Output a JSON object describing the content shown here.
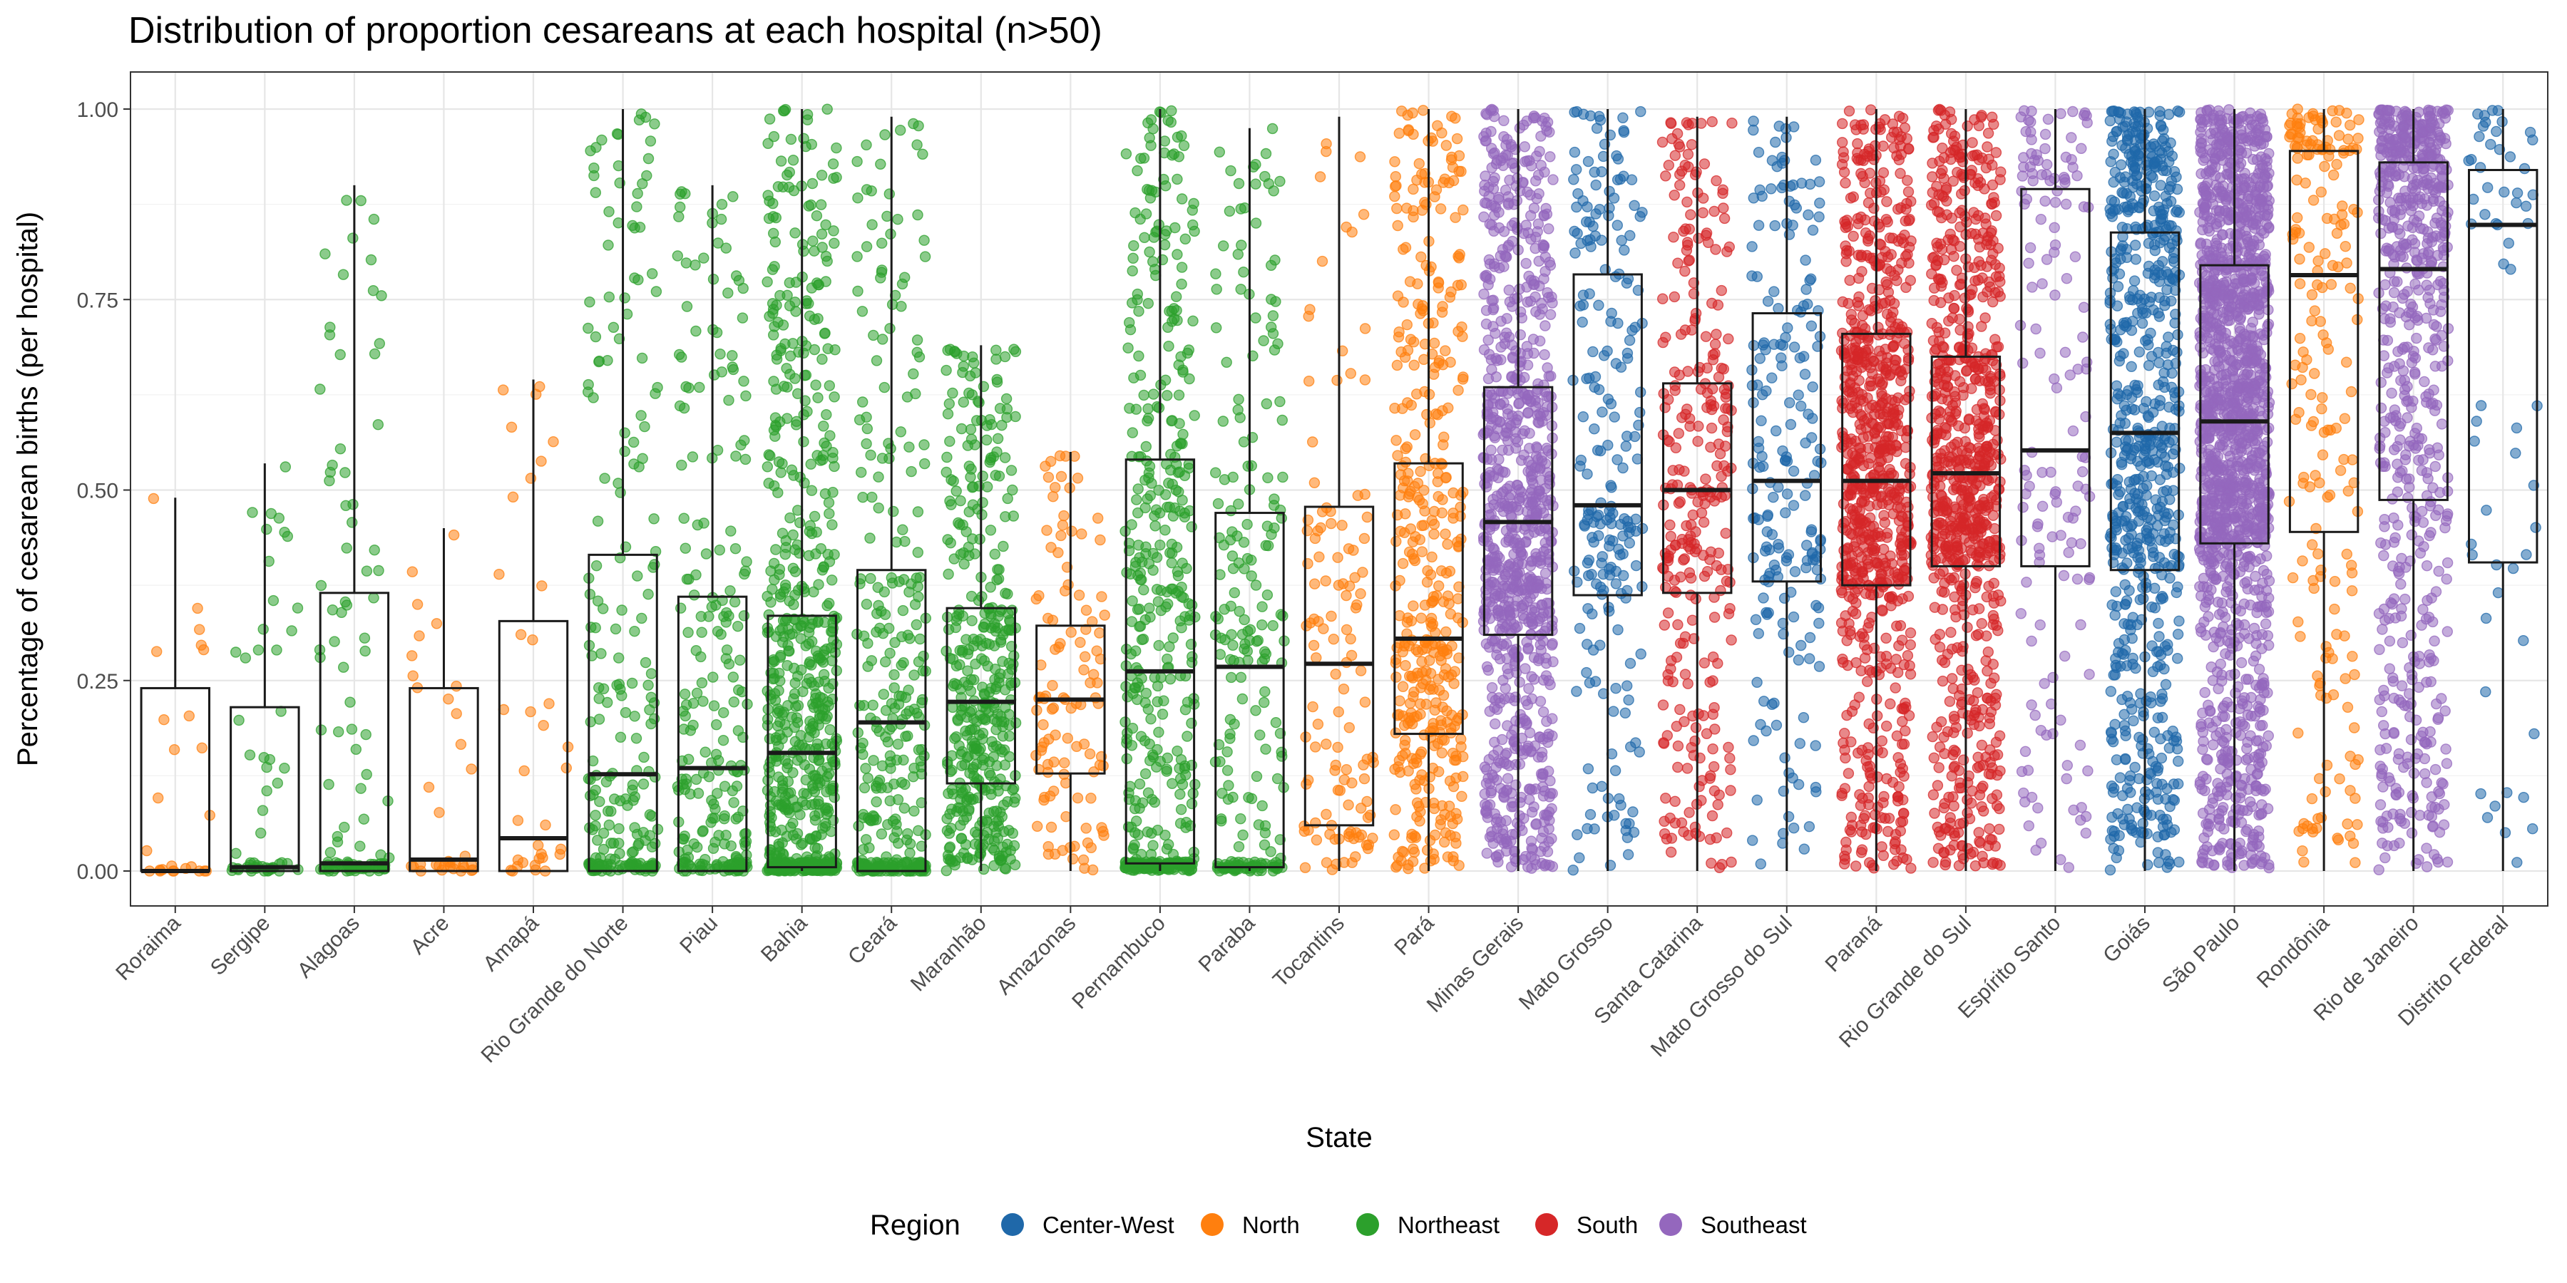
{
  "chart_data": {
    "type": "boxplot+jitter",
    "title": "Distribution of proportion cesareans at each hospital (n>50)",
    "xlabel": "State",
    "ylabel": "Percentage of cesarean births (per hospital)",
    "ylim": [
      0,
      1
    ],
    "yticks": [
      "0.00",
      "0.25",
      "0.50",
      "0.75",
      "1.00"
    ],
    "grid": true,
    "legend": {
      "title": "Region",
      "position": "bottom",
      "entries": [
        {
          "name": "Center-West",
          "color": "#1f68a9"
        },
        {
          "name": "North",
          "color": "#ff7f0e"
        },
        {
          "name": "Northeast",
          "color": "#2ca02c"
        },
        {
          "name": "South",
          "color": "#d62728"
        },
        {
          "name": "Southeast",
          "color": "#9467bd"
        }
      ]
    },
    "states": [
      {
        "name": "Roraima",
        "region": "North",
        "n": 25,
        "q1": 0.0,
        "median": 0.0,
        "q3": 0.24,
        "lo": 0.0,
        "hi": 0.49
      },
      {
        "name": "Sergipe",
        "region": "Northeast",
        "n": 55,
        "q1": 0.0,
        "median": 0.005,
        "q3": 0.215,
        "lo": 0.0,
        "hi": 0.535
      },
      {
        "name": "Alagoas",
        "region": "Northeast",
        "n": 110,
        "q1": 0.0,
        "median": 0.01,
        "q3": 0.365,
        "lo": 0.0,
        "hi": 0.9
      },
      {
        "name": "Acre",
        "region": "North",
        "n": 35,
        "q1": 0.0,
        "median": 0.015,
        "q3": 0.24,
        "lo": 0.0,
        "hi": 0.45
      },
      {
        "name": "Amapá",
        "region": "North",
        "n": 35,
        "q1": 0.0,
        "median": 0.043,
        "q3": 0.328,
        "lo": 0.0,
        "hi": 0.645
      },
      {
        "name": "Rio Grande do Norte",
        "region": "Northeast",
        "n": 220,
        "q1": 0.0,
        "median": 0.127,
        "q3": 0.415,
        "lo": 0.0,
        "hi": 1.0
      },
      {
        "name": "Piau",
        "region": "Northeast",
        "n": 230,
        "q1": 0.0,
        "median": 0.135,
        "q3": 0.36,
        "lo": 0.0,
        "hi": 0.9
      },
      {
        "name": "Bahia",
        "region": "Northeast",
        "n": 700,
        "q1": 0.005,
        "median": 0.155,
        "q3": 0.335,
        "lo": 0.0,
        "hi": 1.0
      },
      {
        "name": "Ceará",
        "region": "Northeast",
        "n": 320,
        "q1": 0.0,
        "median": 0.195,
        "q3": 0.395,
        "lo": 0.0,
        "hi": 0.99
      },
      {
        "name": "Maranhão",
        "region": "Northeast",
        "n": 420,
        "q1": 0.115,
        "median": 0.222,
        "q3": 0.345,
        "lo": 0.0,
        "hi": 0.69
      },
      {
        "name": "Amazonas",
        "region": "North",
        "n": 110,
        "q1": 0.128,
        "median": 0.225,
        "q3": 0.322,
        "lo": 0.0,
        "hi": 0.55
      },
      {
        "name": "Pernambuco",
        "region": "Northeast",
        "n": 450,
        "q1": 0.01,
        "median": 0.262,
        "q3": 0.54,
        "lo": 0.0,
        "hi": 1.0
      },
      {
        "name": "Paraba",
        "region": "Northeast",
        "n": 220,
        "q1": 0.005,
        "median": 0.268,
        "q3": 0.47,
        "lo": 0.0,
        "hi": 0.975
      },
      {
        "name": "Tocantins",
        "region": "North",
        "n": 120,
        "q1": 0.06,
        "median": 0.272,
        "q3": 0.478,
        "lo": 0.0,
        "hi": 0.99
      },
      {
        "name": "Pará",
        "region": "North",
        "n": 420,
        "q1": 0.18,
        "median": 0.305,
        "q3": 0.535,
        "lo": 0.0,
        "hi": 1.0
      },
      {
        "name": "Minas Gerais",
        "region": "Southeast",
        "n": 900,
        "q1": 0.31,
        "median": 0.458,
        "q3": 0.635,
        "lo": 0.0,
        "hi": 1.0
      },
      {
        "name": "Mato Grosso",
        "region": "Center-West",
        "n": 220,
        "q1": 0.362,
        "median": 0.48,
        "q3": 0.783,
        "lo": 0.0,
        "hi": 1.0
      },
      {
        "name": "Santa Catarina",
        "region": "South",
        "n": 300,
        "q1": 0.365,
        "median": 0.5,
        "q3": 0.64,
        "lo": 0.0,
        "hi": 0.99
      },
      {
        "name": "Mato Grosso do Sul",
        "region": "Center-West",
        "n": 200,
        "q1": 0.38,
        "median": 0.512,
        "q3": 0.732,
        "lo": 0.0,
        "hi": 0.99
      },
      {
        "name": "Paraná",
        "region": "South",
        "n": 800,
        "q1": 0.375,
        "median": 0.512,
        "q3": 0.705,
        "lo": 0.0,
        "hi": 1.0
      },
      {
        "name": "Rio Grande do Sul",
        "region": "South",
        "n": 800,
        "q1": 0.4,
        "median": 0.522,
        "q3": 0.675,
        "lo": 0.0,
        "hi": 1.0
      },
      {
        "name": "Espírito Santo",
        "region": "Southeast",
        "n": 150,
        "q1": 0.4,
        "median": 0.552,
        "q3": 0.895,
        "lo": 0.0,
        "hi": 1.0
      },
      {
        "name": "Goiás",
        "region": "Center-West",
        "n": 700,
        "q1": 0.395,
        "median": 0.575,
        "q3": 0.838,
        "lo": 0.0,
        "hi": 1.0
      },
      {
        "name": "São Paulo",
        "region": "Southeast",
        "n": 1500,
        "q1": 0.43,
        "median": 0.59,
        "q3": 0.795,
        "lo": 0.0,
        "hi": 1.0
      },
      {
        "name": "Rondônia",
        "region": "North",
        "n": 200,
        "q1": 0.445,
        "median": 0.782,
        "q3": 0.945,
        "lo": 0.0,
        "hi": 1.0
      },
      {
        "name": "Rio de Janeiro",
        "region": "Southeast",
        "n": 650,
        "q1": 0.487,
        "median": 0.79,
        "q3": 0.93,
        "lo": 0.0,
        "hi": 1.0
      },
      {
        "name": "Distrito Federal",
        "region": "Center-West",
        "n": 60,
        "q1": 0.405,
        "median": 0.848,
        "q3": 0.92,
        "lo": 0.0,
        "hi": 1.0
      }
    ]
  }
}
